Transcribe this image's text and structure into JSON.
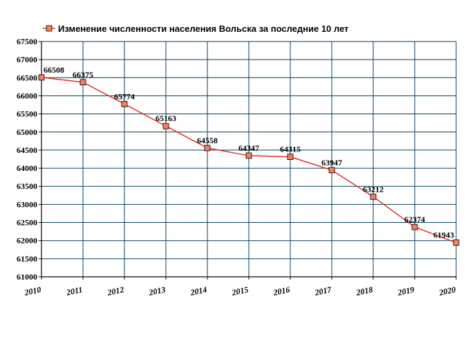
{
  "colors": {
    "line": "#e0332a",
    "marker": "#f08060",
    "grid": "#003f5c",
    "axis": "#000000"
  },
  "legend": {
    "label": "Изменение численности населения Вольска за последние 10 лет",
    "position": "top-left"
  },
  "chart_data": {
    "type": "line",
    "title": "",
    "xlabel": "",
    "ylabel": "",
    "categories": [
      "2010",
      "2011",
      "2012",
      "2013",
      "2014",
      "2015",
      "2016",
      "2017",
      "2018",
      "2019",
      "2020"
    ],
    "series": [
      {
        "name": "Изменение численности населения Вольска за последние 10 лет",
        "values": [
          66508,
          66375,
          65774,
          65163,
          64558,
          64347,
          64315,
          63947,
          63212,
          62374,
          61943
        ]
      }
    ],
    "ylim": [
      61000,
      67500
    ],
    "ytick_labels": [
      "61000",
      "61500",
      "62000",
      "62500",
      "63000",
      "63500",
      "64000",
      "64500",
      "65000",
      "65500",
      "66000",
      "66500",
      "67000",
      "67500"
    ],
    "grid": true,
    "data_labels": [
      "66508",
      "66375",
      "65774",
      "65163",
      "64558",
      "64347",
      "64315",
      "63947",
      "63212",
      "62374",
      "61943"
    ]
  }
}
